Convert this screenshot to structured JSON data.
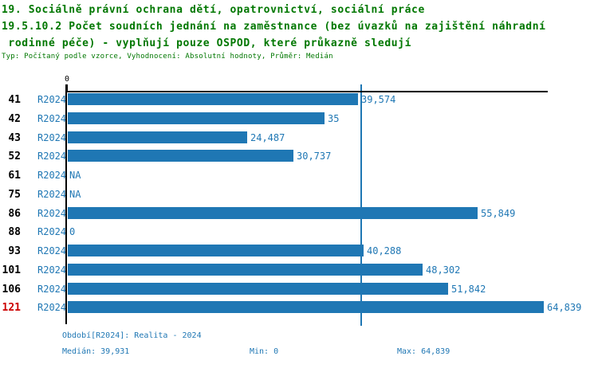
{
  "header": {
    "title_line1": "19. Sociálně právní ochrana dětí, opatrovnictví, sociální práce",
    "title_line2": "19.5.10.2 Počet soudních jednání na zaměstnance (bez úvazků na zajištění náhradní",
    "title_line3": " rodinné péče) - vyplňují pouze OSPOD, které průkazně sledují",
    "meta": "Typ: Počítaný podle vzorce, Vyhodnocení: Absolutní hodnoty, Průměr: Medián"
  },
  "colors": {
    "title_green": "#007700",
    "bar_blue": "#1f77b4",
    "label_blue": "#1f77b4",
    "highlight_red": "#cc0000",
    "axis_black": "#000000"
  },
  "chart_data": {
    "type": "bar",
    "orientation": "horizontal",
    "title": "19.5.10.2 Počet soudních jednání na zaměstnance (bez úvazků na zajištění náhradní rodinné péče) - vyplňují pouze OSPOD, které průkazně sledují",
    "xlabel": "",
    "ylabel": "",
    "axis_origin_label": "0",
    "period_label": "R2024",
    "categories": [
      "41",
      "42",
      "43",
      "52",
      "61",
      "75",
      "86",
      "88",
      "93",
      "101",
      "106",
      "121"
    ],
    "highlighted_category": "121",
    "values": [
      39.574,
      35.0,
      24.487,
      30.737,
      null,
      null,
      55.849,
      0,
      40.288,
      48.302,
      51.842,
      64.839
    ],
    "value_labels": [
      "39,574",
      "35",
      "24,487",
      "30,737",
      "NA",
      "NA",
      "55,849",
      "0",
      "40,288",
      "48,302",
      "51,842",
      "64,839"
    ],
    "xlim": [
      0,
      65.5
    ],
    "median_line_value": 39.931,
    "grid": false,
    "legend_position": "bottom"
  },
  "footer": {
    "period": "Období[R2024]: Realita - 2024",
    "median": "Medián: 39,931",
    "min": "Min: 0",
    "max": "Max: 64,839"
  }
}
